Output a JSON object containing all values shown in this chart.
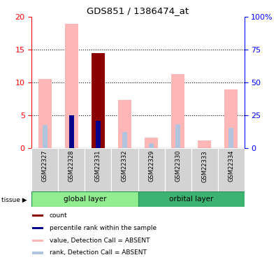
{
  "title": "GDS851 / 1386474_at",
  "samples": [
    "GSM22327",
    "GSM22328",
    "GSM22331",
    "GSM22332",
    "GSM22329",
    "GSM22330",
    "GSM22333",
    "GSM22334"
  ],
  "value_absent": [
    10.5,
    19.0,
    null,
    7.3,
    1.6,
    11.3,
    1.2,
    9.0
  ],
  "rank_absent": [
    3.5,
    null,
    null,
    2.4,
    0.7,
    3.6,
    null,
    3.1
  ],
  "count": [
    null,
    null,
    14.5,
    null,
    null,
    null,
    null,
    null
  ],
  "percentile_rank": [
    null,
    5.0,
    4.2,
    null,
    null,
    null,
    null,
    null
  ],
  "ylim_left": [
    0,
    20
  ],
  "ylim_right": [
    0,
    100
  ],
  "yticks_left": [
    0,
    5,
    10,
    15,
    20
  ],
  "yticks_right": [
    0,
    25,
    50,
    75,
    100
  ],
  "yticklabels_right": [
    "0",
    "25",
    "50",
    "75",
    "100%"
  ],
  "color_count": "#8B0000",
  "color_percentile": "#00008B",
  "color_value_absent": "#FFB6B6",
  "color_rank_absent": "#B0C4DE",
  "color_global": "#90EE90",
  "color_orbital": "#3CB371",
  "color_sample_bg": "#D3D3D3",
  "axis_color_left": "red",
  "axis_color_right": "blue",
  "bar_width": 0.5,
  "rank_bar_width": 0.18
}
